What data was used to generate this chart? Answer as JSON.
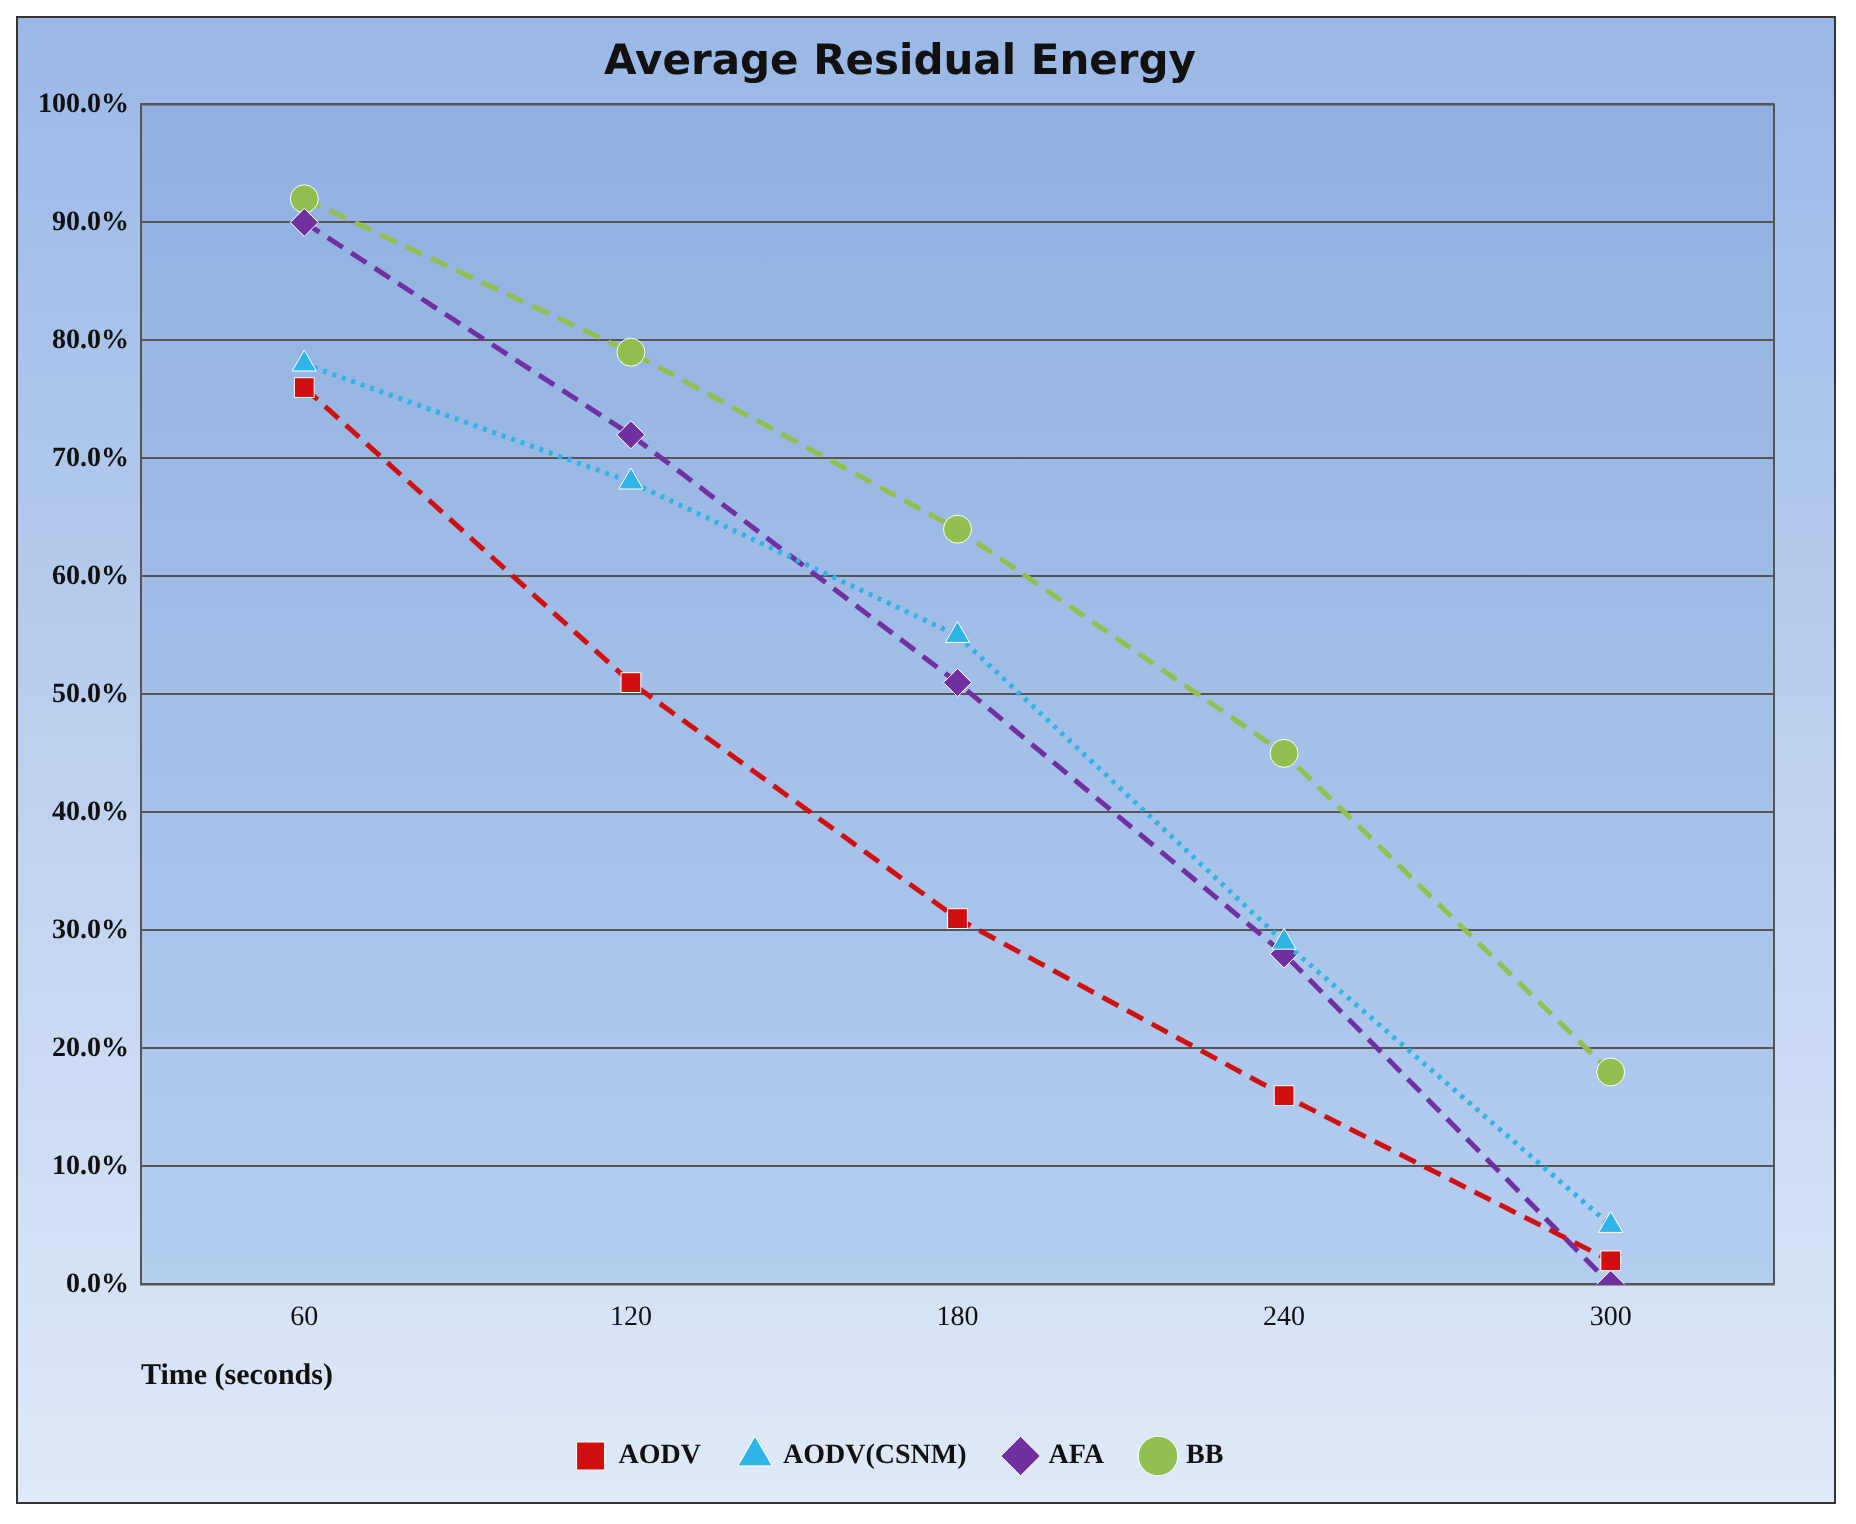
{
  "chart_data": {
    "type": "line",
    "title": "Average Residual Energy",
    "xlabel": "Time (seconds)",
    "categories": [
      "60",
      "120",
      "180",
      "240",
      "300"
    ],
    "series": [
      {
        "name": "AODV",
        "color": "#d01010",
        "values": [
          76,
          51,
          31,
          16,
          2
        ],
        "marker": "square",
        "line_style": "dashed"
      },
      {
        "name": "AODV(CSNM)",
        "color": "#2eb4e6",
        "values": [
          78,
          68,
          55,
          29,
          5
        ],
        "marker": "triangle",
        "line_style": "dotted"
      },
      {
        "name": "AFA",
        "color": "#7030a0",
        "values": [
          90,
          72,
          51,
          28,
          0
        ],
        "marker": "diamond",
        "line_style": "dashed"
      },
      {
        "name": "BB",
        "color": "#92c050",
        "values": [
          92,
          79,
          64,
          45,
          18
        ],
        "marker": "circle",
        "line_style": "dashed"
      }
    ],
    "ylim": [
      0,
      100
    ],
    "yticks": [
      {
        "value": 0,
        "label": "0.0%"
      },
      {
        "value": 10,
        "label": "10.0%"
      },
      {
        "value": 20,
        "label": "20.0%"
      },
      {
        "value": 30,
        "label": "30.0%"
      },
      {
        "value": 40,
        "label": "40.0%"
      },
      {
        "value": 50,
        "label": "50.0%"
      },
      {
        "value": 60,
        "label": "60.0%"
      },
      {
        "value": 70,
        "label": "70.0%"
      },
      {
        "value": 80,
        "label": "80.0%"
      },
      {
        "value": 90,
        "label": "90.0%"
      },
      {
        "value": 100,
        "label": "100.0%"
      }
    ],
    "grid": "y",
    "legend": "bottom"
  }
}
